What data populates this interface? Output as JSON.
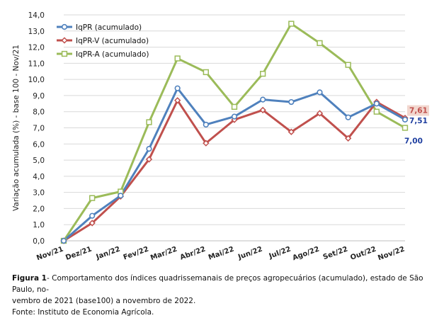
{
  "chart_data": {
    "type": "line",
    "ylabel": "Variação acumulada (%) - base 100 - Nov/21",
    "xlabel": "",
    "ylim": [
      0,
      14
    ],
    "y_ticks": [
      "0,0",
      "1,0",
      "2,0",
      "3,0",
      "4,0",
      "5,0",
      "6,0",
      "7,0",
      "8,0",
      "9,0",
      "10,0",
      "11,0",
      "12,0",
      "13,0",
      "14,0"
    ],
    "categories": [
      "Nov/21",
      "Dez/21",
      "Jan/22",
      "Fev/22",
      "Mar/22",
      "Abr/22",
      "Mai/22",
      "Jun/22",
      "Jul/22",
      "Ago/22",
      "Set/22",
      "Out/22",
      "Nov/22"
    ],
    "grid": true,
    "legend_position": "top-left",
    "series": [
      {
        "name": "IqPR (acumulado)",
        "color": "#4f81bd",
        "marker": "circle",
        "values": [
          0.0,
          1.55,
          2.8,
          5.7,
          9.45,
          7.2,
          7.7,
          8.75,
          8.6,
          9.2,
          7.65,
          8.5,
          7.51
        ]
      },
      {
        "name": "IqPR-V  (acumulado)",
        "color": "#c0504d",
        "marker": "diamond",
        "values": [
          0.0,
          1.1,
          2.75,
          5.05,
          8.7,
          6.05,
          7.5,
          8.1,
          6.75,
          7.9,
          6.35,
          8.6,
          7.61
        ]
      },
      {
        "name": "IqPR-A  (acumulado)",
        "color": "#9bbb59",
        "marker": "square",
        "values": [
          0.0,
          2.65,
          3.05,
          7.35,
          11.3,
          10.45,
          8.3,
          10.35,
          13.45,
          12.25,
          10.9,
          8.0,
          7.0
        ]
      }
    ],
    "end_labels": [
      {
        "text": "7,61",
        "color": "#c0504d",
        "background": "#f2d7cf",
        "series": 1
      },
      {
        "text": "7,51",
        "color": "#1f3fa0",
        "series": 0
      },
      {
        "text": "7,00",
        "color": "#1f3fa0",
        "series": 2
      }
    ]
  },
  "caption": {
    "figure_label": "Figura 1",
    "line1": "- Comportamento dos índices quadrissemanais de preços agropecuários (acumulado), estado de São Paulo, no-",
    "line2": "vembro de 2021 (base100) a novembro de 2022.",
    "source": "Fonte: Instituto de Economia Agrícola."
  }
}
